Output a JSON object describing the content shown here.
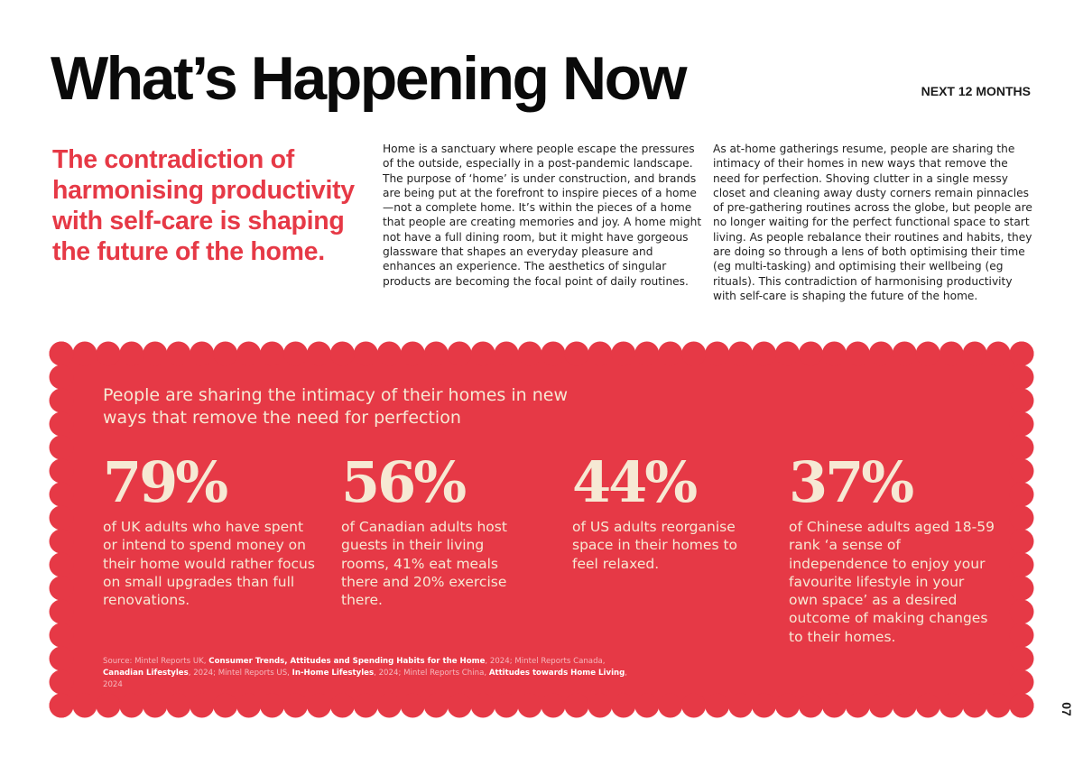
{
  "header": {
    "title": "What’s Happening Now",
    "horizon": "NEXT 12 MONTHS"
  },
  "lede": "The contradiction of harmonising productivity with self-care is shaping the future of the home.",
  "columns": [
    "Home is a sanctuary where people escape the pressures of the outside, especially in a post-pandemic landscape. The purpose of ‘home’ is under construction, and brands are being put at the forefront to inspire pieces of a home—not a complete home. It’s within the pieces of a home that people are creating memories and joy. A home might not have a full dining room, but it might have gorgeous glassware that shapes an everyday pleasure and enhances an experience. The aesthetics of singular products are becoming the focal point of daily routines.",
    "As at-home gatherings resume, people are sharing the intimacy of their homes in new ways that remove the need for perfection. Shoving clutter in a single messy closet and cleaning away dusty corners remain pinnacles of pre-gathering routines across the globe, but people are no longer waiting for the perfect functional space to start living. As people rebalance their routines and habits, they are doing so through a lens of both optimising their time (eg multi-tasking) and optimising their wellbeing (eg rituals). This contradiction of harmonising productivity with self-care is shaping the future of the home."
  ],
  "panel": {
    "title": "People are sharing the intimacy of their homes in new ways that remove the need for perfection",
    "color": "#e63946",
    "stats": [
      {
        "value": "79%",
        "text": "of UK adults who have spent or intend to spend money on their home would rather focus on small upgrades than full renovations."
      },
      {
        "value": "56%",
        "text": "of Canadian adults host guests in their living rooms, 41% eat meals there and 20% exercise there."
      },
      {
        "value": "44%",
        "text": "of US adults reorganise space in their homes to feel relaxed."
      },
      {
        "value": "37%",
        "text": "of Chinese adults aged 18-59 rank ‘a sense of independence to enjoy your favourite lifestyle in your own space’ as a desired outcome of making changes to their homes."
      }
    ],
    "source": {
      "s1": "Source: Mintel Reports UK, ",
      "t1": "Consumer Trends, Attitudes and Spending Habits for the Home",
      "s2": ", 2024; Mintel Reports Canada, ",
      "t2": "Canadian Lifestyles",
      "s3": ", 2024; Mintel Reports US, ",
      "t3": "In-Home Lifestyles",
      "s4": ", 2024; Mintel Reports China, ",
      "t4": "Attitudes towards Home Living",
      "s5": ", 2024"
    }
  },
  "page_number": "07"
}
